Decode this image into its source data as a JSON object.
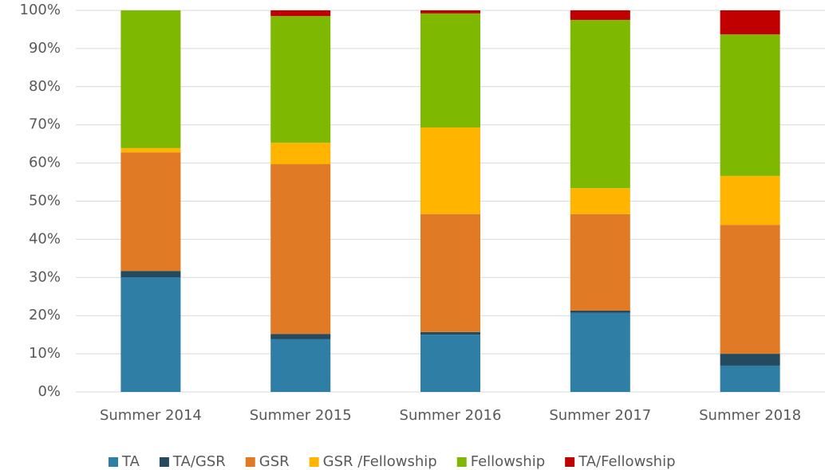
{
  "chart_data": {
    "type": "stacked_bar",
    "categories": [
      "Summer 2014",
      "Summer 2015",
      "Summer 2016",
      "Summer 2017",
      "Summer 2018"
    ],
    "series": [
      {
        "name": "TA",
        "color": "#2e7ea6",
        "values": [
          30.0,
          13.8,
          15.0,
          20.7,
          6.9
        ]
      },
      {
        "name": "TA/GSR",
        "color": "#234a5e",
        "values": [
          1.7,
          1.4,
          0.7,
          0.6,
          3.1
        ]
      },
      {
        "name": "GSR",
        "color": "#e07a24",
        "values": [
          31.1,
          44.5,
          30.9,
          25.3,
          33.8
        ]
      },
      {
        "name": "GSR /Fellowship",
        "color": "#ffb400",
        "values": [
          1.1,
          5.6,
          22.7,
          6.8,
          12.8
        ]
      },
      {
        "name": "Fellowship",
        "color": "#7fb800",
        "values": [
          36.1,
          33.2,
          29.9,
          44.1,
          37.1
        ]
      },
      {
        "name": "TA/Fellowship",
        "color": "#c00000",
        "values": [
          0,
          1.5,
          0.8,
          2.5,
          6.3
        ]
      }
    ],
    "ylim": [
      0,
      100
    ],
    "yticks": [
      {
        "value": 0,
        "label": "0%"
      },
      {
        "value": 10,
        "label": "10%"
      },
      {
        "value": 20,
        "label": "20%"
      },
      {
        "value": 30,
        "label": "30%"
      },
      {
        "value": 40,
        "label": "40%"
      },
      {
        "value": 50,
        "label": "50%"
      },
      {
        "value": 60,
        "label": "60%"
      },
      {
        "value": 70,
        "label": "70%"
      },
      {
        "value": 80,
        "label": "80%"
      },
      {
        "value": 90,
        "label": "90%"
      },
      {
        "value": 100,
        "label": "100%"
      }
    ],
    "grid": true,
    "legend": "bottom"
  }
}
